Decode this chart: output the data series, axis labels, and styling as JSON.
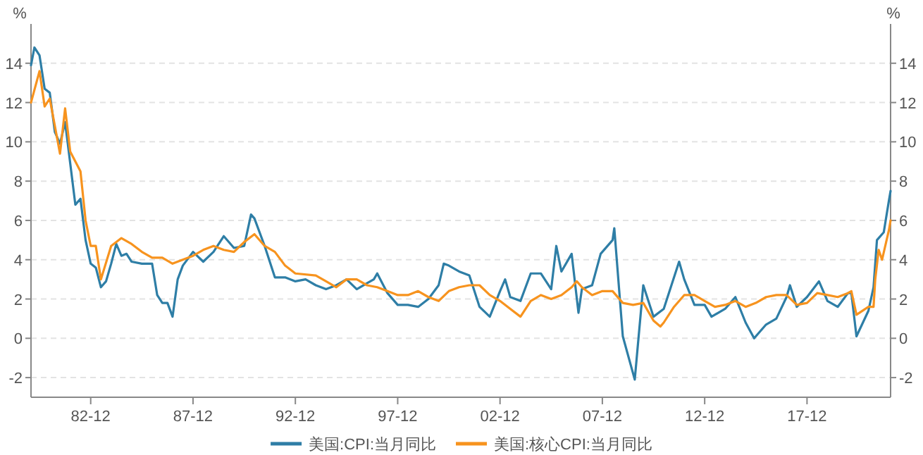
{
  "chart_data": {
    "type": "line",
    "ylabel": "%",
    "y2label": "%",
    "xlim": [
      "1980-01",
      "2022-01"
    ],
    "xticks": [
      {
        "value": "1982-12",
        "label": "82-12"
      },
      {
        "value": "1987-12",
        "label": "87-12"
      },
      {
        "value": "1992-12",
        "label": "92-12"
      },
      {
        "value": "1997-12",
        "label": "97-12"
      },
      {
        "value": "2002-12",
        "label": "02-12"
      },
      {
        "value": "2007-12",
        "label": "07-12"
      },
      {
        "value": "2012-12",
        "label": "12-12"
      },
      {
        "value": "2017-12",
        "label": "17-12"
      }
    ],
    "ylim": [
      -3,
      16
    ],
    "yticks": [
      -2,
      0,
      2,
      4,
      6,
      8,
      10,
      12,
      14
    ],
    "y2lim": [
      -3,
      16
    ],
    "y2ticks": [
      -2,
      0,
      2,
      4,
      6,
      8,
      10,
      12,
      14
    ],
    "grid": "y",
    "legend": "bottom",
    "series": [
      {
        "name": "美国:CPI:当月同比",
        "color": "#2e7ea6",
        "x": [
          "1980-01",
          "1980-03",
          "1980-06",
          "1980-09",
          "1980-12",
          "1981-03",
          "1981-06",
          "1981-09",
          "1981-12",
          "1982-03",
          "1982-06",
          "1982-09",
          "1982-12",
          "1983-03",
          "1983-06",
          "1983-09",
          "1983-12",
          "1984-03",
          "1984-06",
          "1984-09",
          "1984-12",
          "1985-06",
          "1985-12",
          "1986-03",
          "1986-06",
          "1986-09",
          "1986-12",
          "1987-03",
          "1987-06",
          "1987-12",
          "1988-06",
          "1988-12",
          "1989-06",
          "1989-12",
          "1990-06",
          "1990-10",
          "1990-12",
          "1991-06",
          "1991-12",
          "1992-06",
          "1992-12",
          "1993-06",
          "1993-12",
          "1994-06",
          "1994-12",
          "1995-06",
          "1995-12",
          "1996-06",
          "1996-10",
          "1996-12",
          "1997-06",
          "1997-12",
          "1998-06",
          "1998-12",
          "1999-06",
          "1999-12",
          "2000-03",
          "2000-06",
          "2000-12",
          "2001-06",
          "2001-12",
          "2002-06",
          "2002-12",
          "2003-03",
          "2003-06",
          "2003-12",
          "2004-06",
          "2004-12",
          "2005-06",
          "2005-09",
          "2005-12",
          "2006-06",
          "2006-10",
          "2006-12",
          "2007-06",
          "2007-11",
          "2008-06",
          "2008-07",
          "2008-12",
          "2009-07",
          "2009-12",
          "2010-06",
          "2010-12",
          "2011-09",
          "2011-12",
          "2012-06",
          "2012-12",
          "2013-04",
          "2013-12",
          "2014-06",
          "2014-12",
          "2015-05",
          "2015-12",
          "2016-06",
          "2016-12",
          "2017-02",
          "2017-06",
          "2017-12",
          "2018-07",
          "2018-12",
          "2019-06",
          "2019-12",
          "2020-02",
          "2020-05",
          "2020-12",
          "2021-03",
          "2021-05",
          "2021-09",
          "2021-12",
          "2022-01"
        ],
        "values": [
          13.9,
          14.8,
          14.4,
          12.7,
          12.5,
          10.5,
          9.9,
          11.0,
          8.9,
          6.8,
          7.1,
          5.0,
          3.8,
          3.6,
          2.6,
          2.9,
          3.8,
          4.8,
          4.2,
          4.3,
          3.9,
          3.8,
          3.8,
          2.2,
          1.8,
          1.8,
          1.1,
          3.0,
          3.7,
          4.4,
          3.9,
          4.4,
          5.2,
          4.6,
          4.7,
          6.3,
          6.1,
          4.7,
          3.1,
          3.1,
          2.9,
          3.0,
          2.7,
          2.5,
          2.7,
          3.0,
          2.5,
          2.8,
          3.0,
          3.3,
          2.3,
          1.7,
          1.7,
          1.6,
          2.0,
          2.7,
          3.8,
          3.7,
          3.4,
          3.2,
          1.6,
          1.1,
          2.4,
          3.0,
          2.1,
          1.9,
          3.3,
          3.3,
          2.5,
          4.7,
          3.4,
          4.3,
          1.3,
          2.5,
          2.7,
          4.3,
          5.0,
          5.6,
          0.1,
          -2.1,
          2.7,
          1.1,
          1.5,
          3.9,
          3.0,
          1.7,
          1.7,
          1.1,
          1.5,
          2.1,
          0.8,
          0.0,
          0.7,
          1.0,
          2.1,
          2.7,
          1.6,
          2.1,
          2.9,
          1.9,
          1.6,
          2.3,
          2.3,
          0.1,
          1.4,
          2.6,
          5.0,
          5.4,
          7.0,
          7.5
        ]
      },
      {
        "name": "美国:核心CPI:当月同比",
        "color": "#f7931e",
        "x": [
          "1980-01",
          "1980-06",
          "1980-09",
          "1980-12",
          "1981-06",
          "1981-09",
          "1981-12",
          "1982-06",
          "1982-09",
          "1982-12",
          "1983-03",
          "1983-06",
          "1983-12",
          "1984-06",
          "1984-12",
          "1985-06",
          "1985-12",
          "1986-06",
          "1986-12",
          "1987-06",
          "1987-12",
          "1988-06",
          "1988-12",
          "1989-06",
          "1989-12",
          "1990-06",
          "1990-12",
          "1991-06",
          "1991-12",
          "1992-06",
          "1992-12",
          "1993-12",
          "1994-06",
          "1994-12",
          "1995-06",
          "1995-12",
          "1996-06",
          "1996-12",
          "1997-06",
          "1997-12",
          "1998-06",
          "1998-12",
          "1999-06",
          "1999-12",
          "2000-06",
          "2000-12",
          "2001-06",
          "2001-12",
          "2002-06",
          "2002-12",
          "2003-06",
          "2003-12",
          "2004-06",
          "2004-12",
          "2005-06",
          "2005-12",
          "2006-06",
          "2006-09",
          "2006-12",
          "2007-06",
          "2007-12",
          "2008-06",
          "2008-12",
          "2009-06",
          "2009-12",
          "2010-06",
          "2010-10",
          "2010-12",
          "2011-06",
          "2011-12",
          "2012-06",
          "2012-12",
          "2013-06",
          "2013-12",
          "2014-06",
          "2014-12",
          "2015-06",
          "2015-12",
          "2016-06",
          "2016-12",
          "2017-06",
          "2017-12",
          "2018-06",
          "2018-12",
          "2019-06",
          "2019-12",
          "2020-02",
          "2020-05",
          "2020-12",
          "2021-03",
          "2021-04",
          "2021-06",
          "2021-08",
          "2021-12",
          "2022-01"
        ],
        "values": [
          12.0,
          13.6,
          11.8,
          12.2,
          9.4,
          11.7,
          9.5,
          8.5,
          6.0,
          4.7,
          4.7,
          3.0,
          4.7,
          5.1,
          4.8,
          4.4,
          4.1,
          4.1,
          3.8,
          4.0,
          4.2,
          4.5,
          4.7,
          4.5,
          4.4,
          4.9,
          5.3,
          4.7,
          4.4,
          3.7,
          3.3,
          3.2,
          2.9,
          2.6,
          3.0,
          3.0,
          2.7,
          2.6,
          2.4,
          2.2,
          2.2,
          2.4,
          2.1,
          1.9,
          2.4,
          2.6,
          2.7,
          2.7,
          2.2,
          1.9,
          1.5,
          1.1,
          1.9,
          2.2,
          2.0,
          2.2,
          2.6,
          2.9,
          2.6,
          2.2,
          2.4,
          2.4,
          1.8,
          1.7,
          1.8,
          0.9,
          0.6,
          0.8,
          1.6,
          2.2,
          2.2,
          1.9,
          1.6,
          1.7,
          1.9,
          1.6,
          1.8,
          2.1,
          2.2,
          2.2,
          1.7,
          1.8,
          2.3,
          2.2,
          2.1,
          2.3,
          2.4,
          1.2,
          1.6,
          1.6,
          3.0,
          4.5,
          4.0,
          5.5,
          6.0
        ]
      }
    ]
  }
}
